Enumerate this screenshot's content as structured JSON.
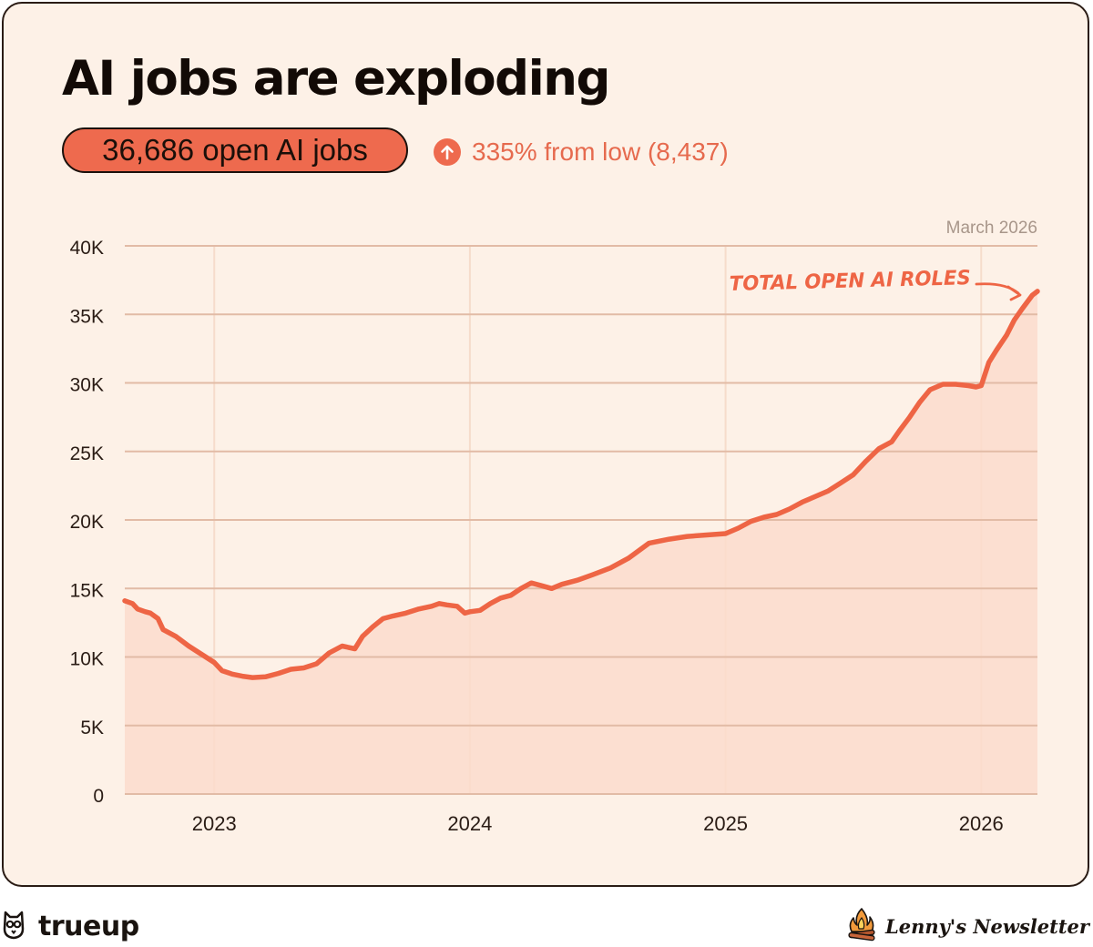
{
  "header": {
    "title": "AI jobs are exploding",
    "pill": "36,686 open AI jobs",
    "change": "335% from low (8,437)"
  },
  "footer": {
    "left_brand": "trueup",
    "right_brand": "Lenny's Newsletter"
  },
  "colors": {
    "accent": "#ee6a4e",
    "line": "#ee6545",
    "fill": "#fbdccd",
    "background": "#fdf1e7",
    "grid": "#e2bba6"
  },
  "icons": {
    "change": "arrow-up-circle-icon",
    "left_brand": "owl-logo-icon",
    "right_brand": "campfire-logo-icon"
  },
  "chart_data": {
    "type": "area",
    "title": "AI jobs are exploding",
    "date_label": "March 2026",
    "annotation": "TOTAL OPEN AI ROLES",
    "xlabel": "",
    "ylabel": "",
    "xlim": [
      2022.65,
      2026.22
    ],
    "ylim": [
      0,
      40000
    ],
    "xticks": [
      {
        "value": 2023,
        "label": "2023"
      },
      {
        "value": 2024,
        "label": "2024"
      },
      {
        "value": 2025,
        "label": "2025"
      },
      {
        "value": 2026,
        "label": "2026"
      }
    ],
    "yticks": [
      {
        "value": 0,
        "label": "0"
      },
      {
        "value": 5000,
        "label": "5K"
      },
      {
        "value": 10000,
        "label": "10K"
      },
      {
        "value": 15000,
        "label": "15K"
      },
      {
        "value": 20000,
        "label": "20K"
      },
      {
        "value": 25000,
        "label": "25K"
      },
      {
        "value": 30000,
        "label": "30K"
      },
      {
        "value": 35000,
        "label": "35K"
      },
      {
        "value": 40000,
        "label": "40K"
      }
    ],
    "grid": true,
    "series": [
      {
        "name": "Total open AI roles",
        "x": [
          2022.65,
          2022.68,
          2022.7,
          2022.73,
          2022.75,
          2022.78,
          2022.8,
          2022.85,
          2022.9,
          2022.95,
          2023.0,
          2023.03,
          2023.07,
          2023.11,
          2023.15,
          2023.2,
          2023.25,
          2023.3,
          2023.35,
          2023.4,
          2023.45,
          2023.5,
          2023.55,
          2023.58,
          2023.62,
          2023.66,
          2023.7,
          2023.75,
          2023.8,
          2023.85,
          2023.88,
          2023.91,
          2023.95,
          2023.98,
          2024.0,
          2024.04,
          2024.08,
          2024.12,
          2024.16,
          2024.2,
          2024.24,
          2024.28,
          2024.32,
          2024.36,
          2024.42,
          2024.48,
          2024.55,
          2024.62,
          2024.7,
          2024.78,
          2024.85,
          2024.92,
          2025.0,
          2025.05,
          2025.1,
          2025.15,
          2025.2,
          2025.25,
          2025.3,
          2025.35,
          2025.4,
          2025.45,
          2025.5,
          2025.55,
          2025.6,
          2025.65,
          2025.68,
          2025.72,
          2025.76,
          2025.8,
          2025.85,
          2025.9,
          2025.95,
          2025.98,
          2026.0,
          2026.03,
          2026.06,
          2026.1,
          2026.13,
          2026.16,
          2026.2,
          2026.22
        ],
        "values": [
          14100,
          13900,
          13500,
          13300,
          13200,
          12800,
          12000,
          11500,
          10800,
          10200,
          9600,
          9000,
          8750,
          8600,
          8500,
          8550,
          8800,
          9100,
          9200,
          9500,
          10300,
          10800,
          10600,
          11500,
          12200,
          12800,
          13000,
          13200,
          13500,
          13700,
          13900,
          13800,
          13700,
          13200,
          13300,
          13400,
          13900,
          14300,
          14500,
          15000,
          15400,
          15200,
          15000,
          15300,
          15600,
          16000,
          16500,
          17200,
          18300,
          18600,
          18800,
          18900,
          19000,
          19400,
          19900,
          20200,
          20400,
          20800,
          21300,
          21700,
          22100,
          22700,
          23300,
          24300,
          25200,
          25700,
          26500,
          27500,
          28600,
          29500,
          29900,
          29900,
          29800,
          29700,
          29800,
          31500,
          32400,
          33500,
          34600,
          35400,
          36400,
          36686
        ]
      }
    ]
  }
}
